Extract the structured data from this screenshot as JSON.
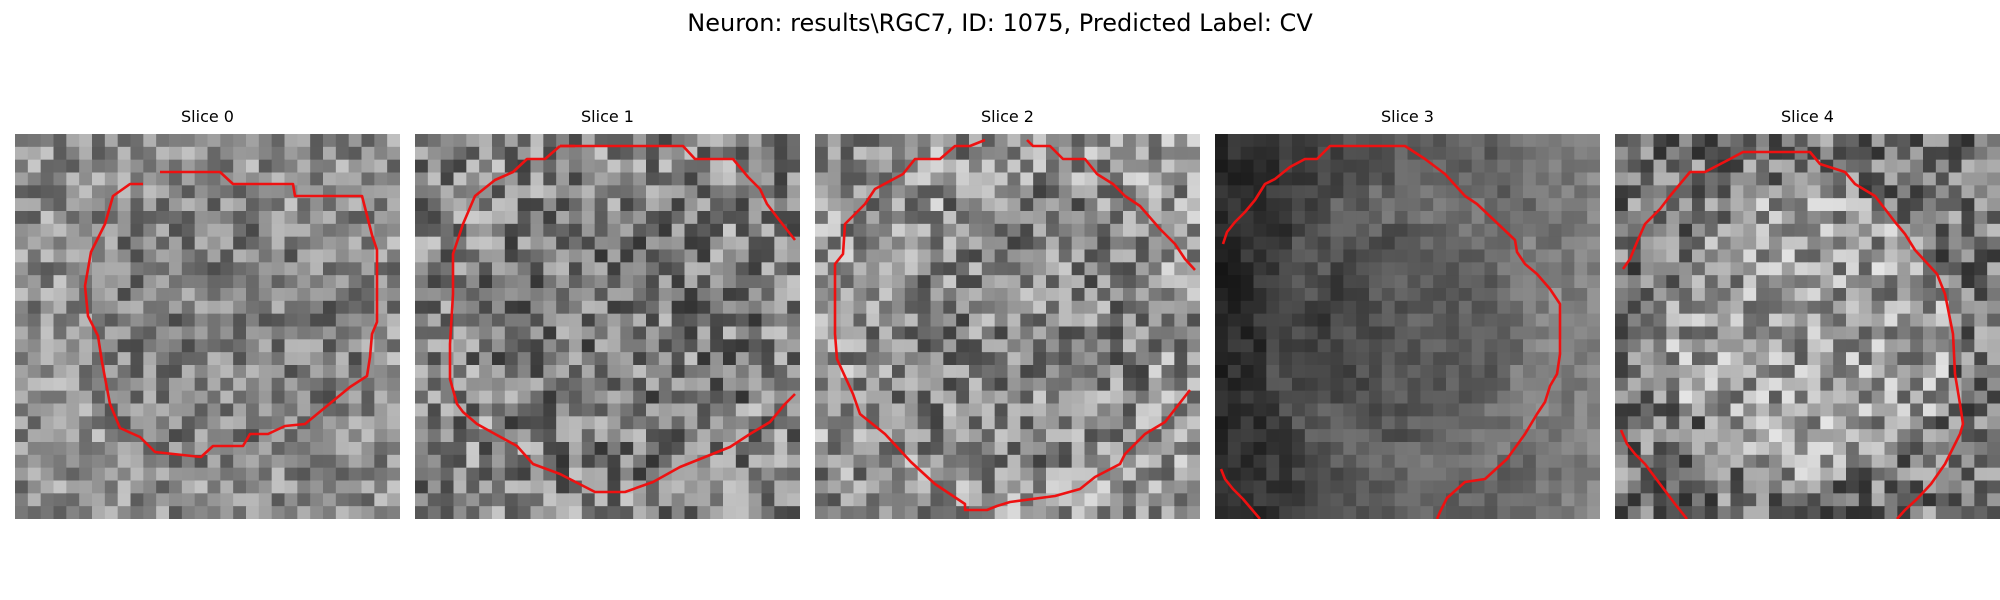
{
  "figure": {
    "title": "Neuron: results\\RGC7, ID: 1075, Predicted Label: CV",
    "contour_color": "#ee1111",
    "colormap": "gray"
  },
  "slices": [
    {
      "label": "Slice 0",
      "brightness": 0.56,
      "contrast": 0.16,
      "center_tone": 0.5,
      "seed": 11
    },
    {
      "label": "Slice 1",
      "brightness": 0.52,
      "contrast": 0.2,
      "center_tone": 0.48,
      "seed": 23
    },
    {
      "label": "Slice 2",
      "brightness": 0.58,
      "contrast": 0.2,
      "center_tone": 0.52,
      "seed": 37
    },
    {
      "label": "Slice 3",
      "brightness": 0.38,
      "contrast": 0.1,
      "center_tone": 0.36,
      "seed": 51
    },
    {
      "label": "Slice 4",
      "brightness": 0.46,
      "contrast": 0.2,
      "center_tone": 0.62,
      "seed": 67
    }
  ]
}
